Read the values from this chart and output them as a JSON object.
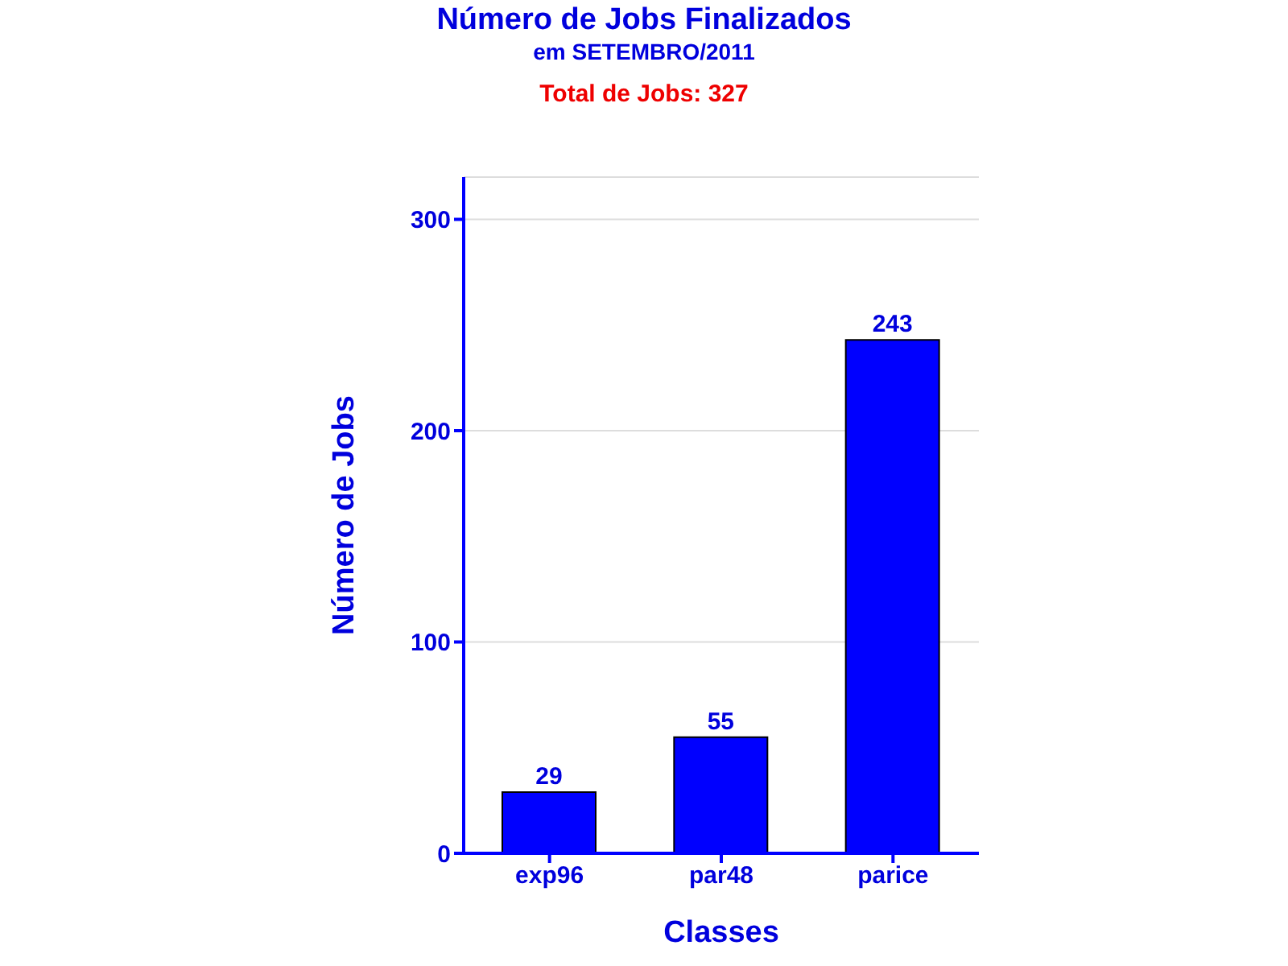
{
  "chart_data": {
    "type": "bar",
    "title": "Número de Jobs Finalizados",
    "subtitle": "em SETEMBRO/2011",
    "annotations": [
      "Total de Jobs: 327"
    ],
    "xlabel": "Classes",
    "ylabel": "Número de Jobs",
    "categories": [
      "exp96",
      "par48",
      "parice"
    ],
    "values": [
      29,
      55,
      243
    ],
    "color": "#0000ff",
    "ylim": [
      0,
      320
    ],
    "yticks": [
      0,
      100,
      200,
      300
    ],
    "grid": "y",
    "data_labels": true
  }
}
